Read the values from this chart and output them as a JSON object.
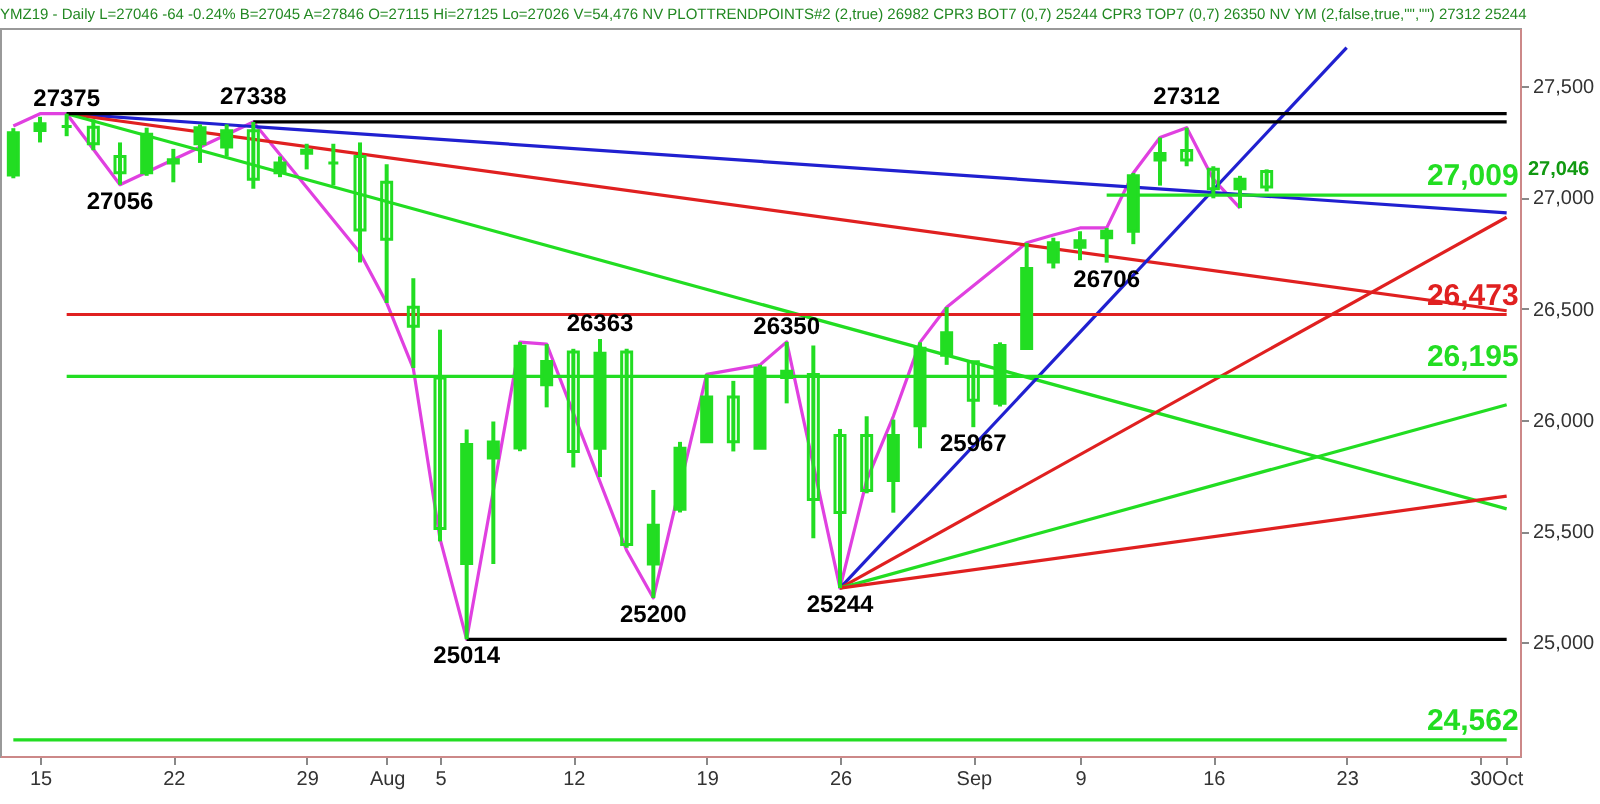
{
  "chart_data": {
    "type": "candlestick",
    "title": "YMZ19 - Daily  L=27046 -64 -0.24% B=27045 A=27846 O=27115 Hi=27125 Lo=27026 V=54,476 NV PLOTTRENDPOINTS#2 (2,true) 26982 CPR3 BOT7 (0,7) 25244 CPR3 TOP7 (0,7) 26350 NV YM (2,false,true,\"\",\"\") 27312 25244",
    "categories": [
      null,
      "15",
      null,
      null,
      null,
      null,
      "22",
      null,
      null,
      null,
      null,
      "29",
      null,
      null,
      "Aug",
      null,
      "5",
      null,
      null,
      null,
      null,
      "12",
      null,
      null,
      null,
      null,
      "19",
      null,
      null,
      null,
      null,
      "26",
      null,
      null,
      null,
      null,
      "Sep",
      null,
      null,
      null,
      "9",
      null,
      null,
      null,
      null,
      "16",
      null,
      null,
      null,
      null,
      "23",
      null,
      null,
      null,
      null,
      "30",
      "Oct"
    ],
    "color": "#22dd22",
    "ohlc": [
      [
        27100,
        27310,
        27085,
        27290
      ],
      [
        27300,
        27361,
        27246,
        27330
      ],
      [
        27318,
        27375,
        27274,
        27318
      ],
      [
        27314,
        27350,
        27211,
        27240
      ],
      [
        27183,
        27246,
        27056,
        27110
      ],
      [
        27110,
        27312,
        27096,
        27283
      ],
      [
        27154,
        27217,
        27067,
        27168
      ],
      [
        27240,
        27327,
        27154,
        27312
      ],
      [
        27226,
        27327,
        27183,
        27298
      ],
      [
        27298,
        27338,
        27038,
        27081
      ],
      [
        27110,
        27183,
        27090,
        27154
      ],
      [
        27197,
        27240,
        27125,
        27211
      ],
      [
        27154,
        27240,
        27053,
        27154
      ],
      [
        27183,
        27246,
        26707,
        26853
      ],
      [
        27067,
        27148,
        26525,
        26811
      ],
      [
        26506,
        26636,
        26233,
        26420
      ],
      [
        26188,
        26405,
        25454,
        25512
      ],
      [
        25355,
        25957,
        25014,
        25889
      ],
      [
        25828,
        25992,
        25352,
        25900
      ],
      [
        25874,
        26349,
        25859,
        26330
      ],
      [
        26158,
        26340,
        26056,
        26262
      ],
      [
        26305,
        26319,
        25786,
        25858
      ],
      [
        25872,
        26363,
        25743,
        26299
      ],
      [
        26305,
        26319,
        25425,
        25440
      ],
      [
        25352,
        25685,
        25200,
        25526
      ],
      [
        25598,
        25901,
        25584,
        25872
      ],
      [
        25901,
        26204,
        25901,
        26103
      ],
      [
        26103,
        26175,
        25858,
        25901
      ],
      [
        25872,
        26247,
        25872,
        26233
      ],
      [
        26190,
        26350,
        26074,
        26218
      ],
      [
        26204,
        26334,
        25468,
        25642
      ],
      [
        25930,
        25959,
        25244,
        25584
      ],
      [
        25930,
        26016,
        25670,
        25683
      ],
      [
        25728,
        26001,
        25583,
        25930
      ],
      [
        25973,
        26348,
        25872,
        26322
      ],
      [
        26290,
        26506,
        26247,
        26391
      ],
      [
        26261,
        26261,
        25967,
        26088
      ],
      [
        26074,
        26348,
        26060,
        26334
      ],
      [
        26320,
        26795,
        26320,
        26680
      ],
      [
        26709,
        26818,
        26680,
        26795
      ],
      [
        26775,
        26847,
        26717,
        26804
      ],
      [
        26818,
        26862,
        26706,
        26847
      ],
      [
        26847,
        27109,
        26789,
        27096
      ],
      [
        27167,
        27268,
        27052,
        27196
      ],
      [
        27210,
        27312,
        27139,
        27167
      ],
      [
        27125,
        27139,
        26995,
        27038
      ],
      [
        27038,
        27096,
        26951,
        27081
      ],
      [
        27115,
        27125,
        27026,
        27046
      ],
      null,
      null,
      null,
      null,
      null,
      null,
      null,
      null,
      null
    ],
    "value_labels": [
      null,
      null,
      "27375",
      null,
      "27056",
      null,
      null,
      null,
      null,
      "27338",
      null,
      null,
      null,
      null,
      null,
      null,
      null,
      "25014",
      null,
      null,
      null,
      null,
      "26363",
      null,
      "25200",
      null,
      null,
      null,
      null,
      "26350",
      null,
      "25244",
      null,
      null,
      null,
      null,
      "25967",
      null,
      null,
      null,
      null,
      "26706",
      null,
      null,
      "27312",
      null,
      null,
      null,
      null,
      null,
      null,
      null,
      null,
      null,
      null,
      null,
      null
    ],
    "series": [
      {
        "type": "line",
        "color": "#e040e0",
        "values": [
          27320,
          27375,
          27375,
          null,
          27056,
          null,
          null,
          null,
          null,
          27338,
          null,
          null,
          null,
          26750,
          26525,
          26230,
          25466,
          25014,
          null,
          26349,
          26340,
          26030,
          null,
          25413,
          25200,
          null,
          26204,
          null,
          26247,
          26350,
          null,
          25244,
          25728,
          26016,
          26348,
          26506,
          null,
          null,
          26795,
          26830,
          26862,
          26862,
          27109,
          27268,
          27312,
          27081,
          26951,
          null,
          null,
          null,
          null,
          null,
          null,
          null,
          null,
          null,
          null
        ]
      },
      {
        "type": "line",
        "color": "#2020d0",
        "values": [
          null,
          null,
          27375,
          null,
          null,
          null,
          null,
          null,
          null,
          null,
          null,
          null,
          null,
          null,
          null,
          null,
          null,
          null,
          null,
          null,
          null,
          null,
          null,
          null,
          null,
          null,
          null,
          null,
          null,
          null,
          null,
          null,
          null,
          null,
          null,
          null,
          null,
          null,
          null,
          null,
          null,
          null,
          null,
          null,
          null,
          null,
          null,
          null,
          null,
          null,
          null,
          null,
          null,
          null,
          null,
          null,
          26930
        ]
      },
      {
        "type": "line",
        "color": "#e02020",
        "values": [
          null,
          null,
          27375,
          null,
          null,
          null,
          null,
          null,
          null,
          null,
          null,
          null,
          null,
          null,
          null,
          null,
          null,
          null,
          null,
          null,
          null,
          null,
          null,
          null,
          null,
          null,
          null,
          null,
          null,
          null,
          null,
          null,
          null,
          null,
          null,
          null,
          null,
          null,
          null,
          null,
          null,
          null,
          null,
          null,
          null,
          null,
          null,
          null,
          null,
          null,
          null,
          null,
          null,
          null,
          null,
          null,
          26490
        ]
      },
      {
        "type": "line",
        "color": "#22dd22",
        "values": [
          null,
          null,
          27375,
          null,
          null,
          null,
          null,
          null,
          null,
          null,
          null,
          null,
          null,
          null,
          null,
          null,
          null,
          null,
          null,
          null,
          null,
          null,
          null,
          null,
          null,
          null,
          null,
          null,
          null,
          null,
          null,
          null,
          null,
          null,
          null,
          null,
          null,
          null,
          null,
          null,
          null,
          null,
          null,
          null,
          null,
          null,
          null,
          null,
          null,
          null,
          null,
          null,
          null,
          null,
          null,
          null,
          25600
        ]
      },
      {
        "type": "line",
        "color": "#2020d0",
        "values": [
          null,
          null,
          null,
          null,
          null,
          null,
          null,
          null,
          null,
          null,
          null,
          null,
          null,
          null,
          null,
          null,
          null,
          null,
          null,
          null,
          null,
          null,
          null,
          null,
          null,
          null,
          null,
          null,
          null,
          null,
          null,
          25244,
          null,
          null,
          null,
          null,
          null,
          null,
          null,
          null,
          null,
          null,
          null,
          null,
          null,
          null,
          null,
          null,
          null,
          null,
          27672,
          null,
          null,
          null,
          null,
          null,
          null
        ]
      },
      {
        "type": "line",
        "color": "#e02020",
        "values": [
          null,
          null,
          null,
          null,
          null,
          null,
          null,
          null,
          null,
          null,
          null,
          null,
          null,
          null,
          null,
          null,
          null,
          null,
          null,
          null,
          null,
          null,
          null,
          null,
          null,
          null,
          null,
          null,
          null,
          null,
          null,
          25244,
          null,
          null,
          null,
          null,
          null,
          null,
          null,
          null,
          null,
          null,
          null,
          null,
          null,
          null,
          null,
          null,
          null,
          null,
          null,
          null,
          null,
          null,
          null,
          null,
          26910
        ]
      },
      {
        "type": "line",
        "color": "#22dd22",
        "values": [
          null,
          null,
          null,
          null,
          null,
          null,
          null,
          null,
          null,
          null,
          null,
          null,
          null,
          null,
          null,
          null,
          null,
          null,
          null,
          null,
          null,
          null,
          null,
          null,
          null,
          null,
          null,
          null,
          null,
          null,
          null,
          25244,
          null,
          null,
          null,
          null,
          null,
          null,
          null,
          null,
          null,
          null,
          null,
          null,
          null,
          null,
          null,
          null,
          null,
          null,
          null,
          null,
          null,
          null,
          null,
          null,
          26068
        ]
      },
      {
        "type": "line",
        "color": "#e02020",
        "values": [
          null,
          null,
          null,
          null,
          null,
          null,
          null,
          null,
          null,
          null,
          null,
          null,
          null,
          null,
          null,
          null,
          null,
          null,
          null,
          null,
          null,
          null,
          null,
          null,
          null,
          null,
          null,
          null,
          null,
          null,
          null,
          25244,
          null,
          null,
          null,
          null,
          null,
          null,
          null,
          null,
          null,
          null,
          null,
          null,
          null,
          null,
          null,
          null,
          null,
          null,
          null,
          null,
          null,
          null,
          null,
          null,
          25657
        ]
      },
      {
        "type": "line",
        "color": "#000000",
        "values": [
          null,
          null,
          27375,
          null,
          null,
          null,
          null,
          null,
          null,
          null,
          null,
          null,
          null,
          null,
          null,
          null,
          null,
          null,
          null,
          null,
          null,
          null,
          null,
          null,
          null,
          null,
          null,
          null,
          null,
          null,
          null,
          null,
          null,
          null,
          null,
          null,
          null,
          null,
          null,
          null,
          null,
          null,
          null,
          null,
          null,
          null,
          null,
          null,
          null,
          null,
          null,
          null,
          null,
          null,
          null,
          null,
          27375
        ]
      },
      {
        "type": "line",
        "color": "#000000",
        "values": [
          null,
          null,
          null,
          null,
          null,
          null,
          null,
          null,
          null,
          27338,
          null,
          null,
          null,
          null,
          null,
          null,
          null,
          null,
          null,
          null,
          null,
          null,
          null,
          null,
          null,
          null,
          null,
          null,
          null,
          null,
          null,
          null,
          null,
          null,
          null,
          null,
          null,
          null,
          null,
          null,
          null,
          null,
          null,
          null,
          null,
          null,
          null,
          null,
          null,
          null,
          null,
          null,
          null,
          null,
          null,
          null,
          27338
        ]
      },
      {
        "type": "line",
        "color": "#000000",
        "values": [
          null,
          null,
          null,
          null,
          null,
          null,
          null,
          null,
          null,
          null,
          null,
          null,
          null,
          null,
          null,
          null,
          null,
          25014,
          null,
          null,
          null,
          null,
          null,
          null,
          null,
          null,
          null,
          null,
          null,
          null,
          null,
          null,
          null,
          null,
          null,
          null,
          null,
          null,
          null,
          null,
          null,
          null,
          null,
          null,
          null,
          null,
          null,
          null,
          null,
          null,
          null,
          null,
          null,
          null,
          null,
          null,
          25014
        ]
      },
      {
        "type": "line",
        "name": "27,009",
        "color": "#22dd22",
        "values": [
          null,
          null,
          null,
          null,
          null,
          null,
          null,
          null,
          null,
          null,
          null,
          null,
          null,
          null,
          null,
          null,
          null,
          null,
          null,
          null,
          null,
          null,
          null,
          null,
          null,
          null,
          null,
          null,
          null,
          null,
          null,
          null,
          null,
          null,
          null,
          null,
          null,
          null,
          null,
          null,
          null,
          27009,
          null,
          null,
          null,
          null,
          null,
          null,
          null,
          null,
          null,
          null,
          null,
          null,
          null,
          null,
          27009
        ]
      },
      {
        "type": "line",
        "name": "26,473",
        "color": "#e02020",
        "values": [
          null,
          null,
          26473,
          null,
          null,
          null,
          null,
          null,
          null,
          null,
          null,
          null,
          null,
          null,
          null,
          null,
          null,
          null,
          null,
          null,
          null,
          null,
          null,
          null,
          null,
          null,
          null,
          null,
          null,
          null,
          null,
          null,
          null,
          null,
          null,
          null,
          null,
          null,
          null,
          null,
          null,
          null,
          null,
          null,
          null,
          null,
          null,
          null,
          null,
          null,
          null,
          null,
          null,
          null,
          null,
          null,
          26473
        ]
      },
      {
        "type": "line",
        "name": "26,195",
        "color": "#22dd22",
        "values": [
          null,
          null,
          26195,
          null,
          null,
          null,
          null,
          null,
          null,
          null,
          null,
          null,
          null,
          null,
          null,
          null,
          null,
          null,
          null,
          null,
          null,
          null,
          null,
          null,
          null,
          null,
          null,
          null,
          null,
          null,
          null,
          null,
          null,
          null,
          null,
          null,
          null,
          null,
          null,
          null,
          null,
          null,
          null,
          null,
          null,
          null,
          null,
          null,
          null,
          null,
          null,
          null,
          null,
          null,
          null,
          null,
          26195
        ]
      },
      {
        "type": "line",
        "name": "24,562",
        "color": "#22dd22",
        "values": [
          24562,
          null,
          null,
          null,
          null,
          null,
          null,
          null,
          null,
          null,
          null,
          null,
          null,
          null,
          null,
          null,
          null,
          null,
          null,
          null,
          null,
          null,
          null,
          null,
          null,
          null,
          null,
          null,
          null,
          null,
          null,
          null,
          null,
          null,
          null,
          null,
          null,
          null,
          null,
          null,
          null,
          null,
          null,
          null,
          null,
          null,
          null,
          null,
          null,
          null,
          null,
          null,
          null,
          null,
          null,
          null,
          24562
        ]
      }
    ],
    "ylim": [
      24490,
      27760
    ],
    "yticks": [
      {
        "value": 25000,
        "label": "25,000"
      },
      {
        "value": 25500,
        "label": "25,500"
      },
      {
        "value": 26000,
        "label": "26,000"
      },
      {
        "value": 26500,
        "label": "26,500"
      },
      {
        "value": 27000,
        "label": "27,000"
      },
      {
        "value": 27500,
        "label": "27,500"
      }
    ],
    "annotations": [
      "27,046"
    ]
  }
}
